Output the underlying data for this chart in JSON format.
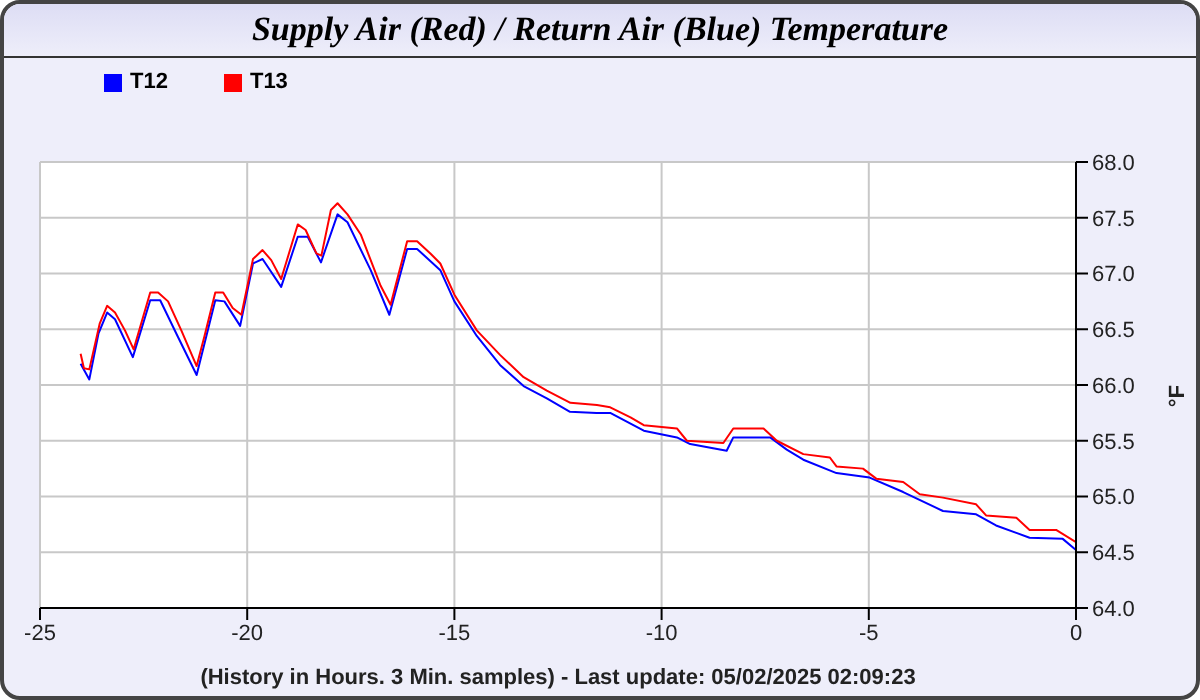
{
  "chart_data": {
    "type": "line",
    "title": "Supply Air (Red) / Return Air (Blue) Temperature",
    "xlabel": "(History in Hours. 3 Min. samples) - Last update: 05/02/2025 02:09:23",
    "ylabel": "°F",
    "xlim": [
      -25,
      0
    ],
    "xticks": [
      -25,
      -20,
      -15,
      -10,
      -5,
      0
    ],
    "ylim": [
      64,
      68
    ],
    "yticks": [
      {
        "value": 64,
        "label": "64.0"
      },
      {
        "value": 64.5,
        "label": "64.5"
      },
      {
        "value": 65,
        "label": "65.0"
      },
      {
        "value": 65.5,
        "label": "65.5"
      },
      {
        "value": 66,
        "label": "66.0"
      },
      {
        "value": 66.5,
        "label": "66.5"
      },
      {
        "value": 67,
        "label": "67.0"
      },
      {
        "value": 67.5,
        "label": "67.5"
      },
      {
        "value": 68,
        "label": "68.0"
      }
    ],
    "grid": true,
    "legend": "top left",
    "line_style": "solid",
    "marker": "none",
    "series": [
      {
        "name": "T12",
        "color": "#0000ff",
        "x": [
          -24.02,
          -23.81,
          -23.59,
          -23.38,
          -23.19,
          -22.76,
          -22.34,
          -22.1,
          -21.67,
          -21.22,
          -20.77,
          -20.55,
          -20.17,
          -19.86,
          -19.63,
          -19.18,
          -18.78,
          -18.54,
          -18.22,
          -17.82,
          -17.58,
          -17.02,
          -16.57,
          -16.14,
          -15.9,
          -15.34,
          -15,
          -14.46,
          -13.9,
          -13.33,
          -12.77,
          -12.21,
          -11.57,
          -11.24,
          -10.43,
          -9.63,
          -9.31,
          -8.43,
          -8.27,
          -7.38,
          -6.98,
          -6.58,
          -5.78,
          -4.98,
          -4.17,
          -3.21,
          -2.41,
          -1.93,
          -1.12,
          -0.32,
          0
        ],
        "values": [
          66.19,
          66.05,
          66.46,
          66.65,
          66.59,
          66.25,
          66.76,
          66.76,
          66.43,
          66.09,
          66.76,
          66.75,
          66.53,
          67.09,
          67.13,
          66.88,
          67.33,
          67.33,
          67.1,
          67.53,
          67.46,
          67.03,
          66.63,
          67.22,
          67.22,
          67.03,
          66.75,
          66.44,
          66.18,
          65.99,
          65.88,
          65.76,
          65.75,
          65.75,
          65.59,
          65.53,
          65.47,
          65.41,
          65.53,
          65.53,
          65.42,
          65.33,
          65.21,
          65.17,
          65.04,
          64.87,
          64.84,
          64.74,
          64.63,
          64.62,
          64.52
        ]
      },
      {
        "name": "T13",
        "color": "#ff0000",
        "x": [
          -24.02,
          -23.94,
          -23.81,
          -23.56,
          -23.38,
          -23.19,
          -22.95,
          -22.74,
          -22.34,
          -22.15,
          -21.91,
          -21.59,
          -21.22,
          -21.03,
          -20.77,
          -20.58,
          -20.35,
          -20.14,
          -19.86,
          -19.63,
          -19.42,
          -19.18,
          -18.78,
          -18.59,
          -18.33,
          -18.21,
          -17.98,
          -17.82,
          -17.58,
          -17.26,
          -17.02,
          -16.78,
          -16.54,
          -16.14,
          -15.9,
          -15.58,
          -15.34,
          -15,
          -14.46,
          -13.9,
          -13.33,
          -12.77,
          -12.2,
          -11.56,
          -11.24,
          -10.75,
          -10.43,
          -9.63,
          -9.39,
          -8.51,
          -8.27,
          -7.54,
          -7.22,
          -6.58,
          -5.94,
          -5.78,
          -5.14,
          -4.82,
          -4.17,
          -3.77,
          -3.21,
          -2.41,
          -2.17,
          -1.44,
          -1.12,
          -0.48,
          0
        ],
        "values": [
          66.28,
          66.15,
          66.14,
          66.55,
          66.71,
          66.65,
          66.49,
          66.32,
          66.83,
          66.83,
          66.75,
          66.49,
          66.17,
          66.44,
          66.83,
          66.83,
          66.69,
          66.63,
          67.13,
          67.21,
          67.12,
          66.95,
          67.44,
          67.39,
          67.18,
          67.16,
          67.57,
          67.63,
          67.53,
          67.35,
          67.12,
          66.89,
          66.72,
          67.29,
          67.29,
          67.18,
          67.09,
          66.81,
          66.49,
          66.27,
          66.07,
          65.95,
          65.84,
          65.82,
          65.8,
          65.71,
          65.64,
          65.61,
          65.5,
          65.48,
          65.61,
          65.61,
          65.5,
          65.38,
          65.35,
          65.27,
          65.25,
          65.16,
          65.13,
          65.02,
          64.99,
          64.93,
          64.83,
          64.81,
          64.7,
          64.7,
          64.59
        ]
      }
    ]
  }
}
